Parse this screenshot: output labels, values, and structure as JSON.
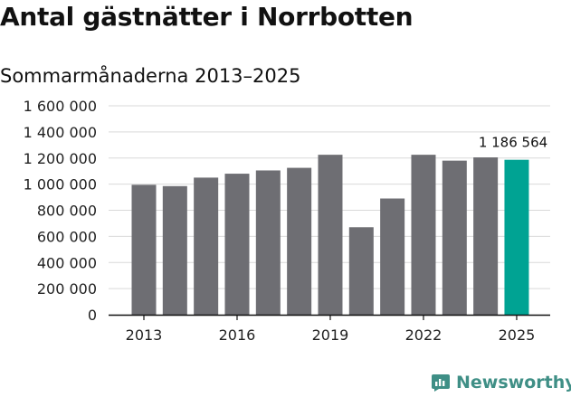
{
  "title": "Antal gästnätter i Norrbotten",
  "subtitle": "Sommarmånaderna 2013–2025",
  "brand": {
    "name": "Newsworthy",
    "color": "#3f8f86"
  },
  "colors": {
    "bar": "#6e6e73",
    "highlight": "#00a393",
    "grid": "#d9d9d9",
    "axis": "#111111"
  },
  "chart_data": {
    "type": "bar",
    "title": "Antal gästnätter i Norrbotten",
    "subtitle": "Sommarmånaderna 2013–2025",
    "xlabel": "",
    "ylabel": "",
    "ylim": [
      0,
      1600000
    ],
    "yticks": [
      0,
      200000,
      400000,
      600000,
      800000,
      1000000,
      1200000,
      1400000,
      1600000
    ],
    "ytick_labels": [
      "0",
      "200 000",
      "400 000",
      "600 000",
      "800 000",
      "1 000 000",
      "1 200 000",
      "1 400 000",
      "1 600 000"
    ],
    "categories": [
      "2013",
      "2014",
      "2015",
      "2016",
      "2017",
      "2018",
      "2019",
      "2020",
      "2021",
      "2022",
      "2023",
      "2024",
      "2025"
    ],
    "xtick_labels": [
      "2013",
      "2016",
      "2019",
      "2022",
      "2025"
    ],
    "values": [
      995000,
      985000,
      1050000,
      1080000,
      1105000,
      1125000,
      1225000,
      670000,
      890000,
      1225000,
      1180000,
      1205000,
      1186564
    ],
    "highlight_index": 12,
    "data_labels": [
      {
        "category": "2025",
        "text": "1 186 564"
      }
    ],
    "grid": true,
    "legend": "none"
  }
}
